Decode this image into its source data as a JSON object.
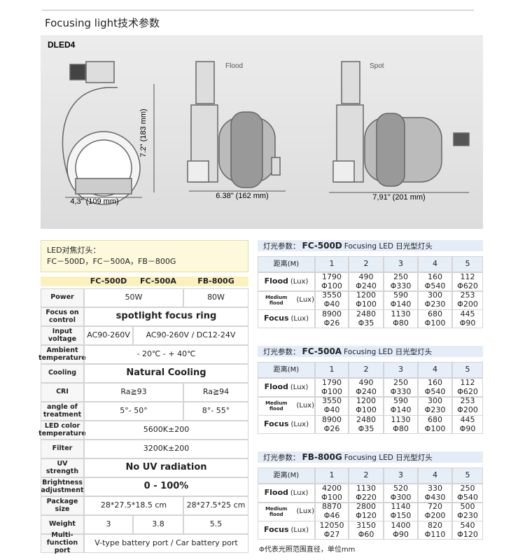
{
  "header": {
    "title": "Focusing light技术参数"
  },
  "figure": {
    "model": "DLED4",
    "height_left": "7.2\" (183 mm)",
    "width_left": "4,3\" (109 mm)",
    "flood": "Flood",
    "spot": "Spot",
    "width_flood": "6.38\" (162 mm)",
    "width_spot": "7,91\" (201 mm)"
  },
  "spec_table": {
    "intro": [
      "LED对焦灯头：",
      "FC－500D，FC－500A，FB－800G"
    ],
    "columns": [
      "FC-500D",
      "FC-500A",
      "FB-800G"
    ],
    "rows": [
      {
        "label": "Power",
        "cells": [
          "50W",
          "80W"
        ]
      },
      {
        "label": "Focus on control",
        "cells": [
          "spotlight focus ring"
        ]
      },
      {
        "label": "Input voltage",
        "cells": [
          "AC90-260V",
          "AC90-260V / DC12-24V"
        ]
      },
      {
        "label": "Ambient temperature",
        "cells": [
          "- 20℃ - + 40℃"
        ]
      },
      {
        "label": "Cooling",
        "cells": [
          "Natural Cooling"
        ]
      },
      {
        "label": "CRI",
        "cells": [
          "Ra≧93",
          "Ra≧94"
        ]
      },
      {
        "label": "angle of treatment",
        "cells": [
          "5°- 50°",
          "8°- 55°"
        ]
      },
      {
        "label": "LED color temperature",
        "cells": [
          "5600K±200"
        ]
      },
      {
        "label": "Filter",
        "cells": [
          "3200K±200"
        ]
      },
      {
        "label": "UV strength",
        "cells": [
          "No UV radiation"
        ]
      },
      {
        "label": "Brightness adjustment",
        "cells": [
          "0 - 100%"
        ]
      },
      {
        "label": "Package size",
        "cells": [
          "28*27.5*18.5 cm",
          "28*27.5*25 cm"
        ]
      },
      {
        "label": "Weight",
        "cells": [
          "3",
          "3.8",
          "5.5"
        ]
      },
      {
        "label": "Multi-function port",
        "cells": [
          "V-type battery port / Car battery port"
        ]
      }
    ]
  },
  "light_tables": [
    {
      "prefix": "灯光参数：",
      "model": "FC-500D",
      "suffix": "Focusing LED 日光型灯头",
      "head_label": "距离(M)",
      "distances": [
        1,
        2,
        3,
        4,
        5
      ],
      "rows": [
        {
          "label": "Flood",
          "unit": "(Lux)",
          "lux": [
            1790,
            490,
            250,
            160,
            112
          ],
          "diameter": [
            "Φ100",
            "Φ240",
            "Φ330",
            "Φ540",
            "Φ620"
          ]
        },
        {
          "label": "Medium flood",
          "unit": "(Lux)",
          "lux": [
            3550,
            1200,
            590,
            300,
            253
          ],
          "diameter": [
            "Φ40",
            "Φ100",
            "Φ140",
            "Φ230",
            "Φ200"
          ]
        },
        {
          "label": "Focus",
          "unit": "(Lux)",
          "lux": [
            8900,
            2480,
            1130,
            680,
            445
          ],
          "diameter": [
            "Φ26",
            "Φ35",
            "Φ80",
            "Φ100",
            "Φ90"
          ]
        }
      ]
    },
    {
      "prefix": "灯光参数：",
      "model": "FC-500A",
      "suffix": "Focusing LED 日光型灯头",
      "head_label": "距离(M)",
      "distances": [
        1,
        2,
        3,
        4,
        5
      ],
      "rows": [
        {
          "label": "Flood",
          "unit": "(Lux)",
          "lux": [
            1790,
            490,
            250,
            160,
            112
          ],
          "diameter": [
            "Φ100",
            "Φ240",
            "Φ330",
            "Φ540",
            "Φ620"
          ]
        },
        {
          "label": "Medium flood",
          "unit": "(Lux)",
          "lux": [
            3550,
            1200,
            590,
            300,
            253
          ],
          "diameter": [
            "Φ40",
            "Φ100",
            "Φ140",
            "Φ230",
            "Φ200"
          ]
        },
        {
          "label": "Focus",
          "unit": "(Lux)",
          "lux": [
            8900,
            2480,
            1130,
            680,
            445
          ],
          "diameter": [
            "Φ26",
            "Φ35",
            "Φ80",
            "Φ100",
            "Φ90"
          ]
        }
      ]
    },
    {
      "prefix": "灯光参数：",
      "model": "FB-800G",
      "suffix": "Focusing LED 日光型灯头",
      "head_label": "距离(M)",
      "distances": [
        1,
        2,
        3,
        4,
        5
      ],
      "rows": [
        {
          "label": "Flood",
          "unit": "(Lux)",
          "lux": [
            4200,
            1130,
            520,
            330,
            250
          ],
          "diameter": [
            "Φ100",
            "Φ220",
            "Φ300",
            "Φ430",
            "Φ540"
          ]
        },
        {
          "label": "Medium flood",
          "unit": "(Lux)",
          "lux": [
            8870,
            2800,
            1140,
            720,
            500
          ],
          "diameter": [
            "Φ46",
            "Φ120",
            "Φ150",
            "Φ200",
            "Φ230"
          ]
        },
        {
          "label": "Focus",
          "unit": "(Lux)",
          "lux": [
            12050,
            3150,
            1400,
            820,
            540
          ],
          "diameter": [
            "Φ27",
            "Φ60",
            "Φ90",
            "Φ110",
            "Φ120"
          ]
        }
      ]
    }
  ],
  "footnote": "Φ代表光照范围直径，单位mm"
}
